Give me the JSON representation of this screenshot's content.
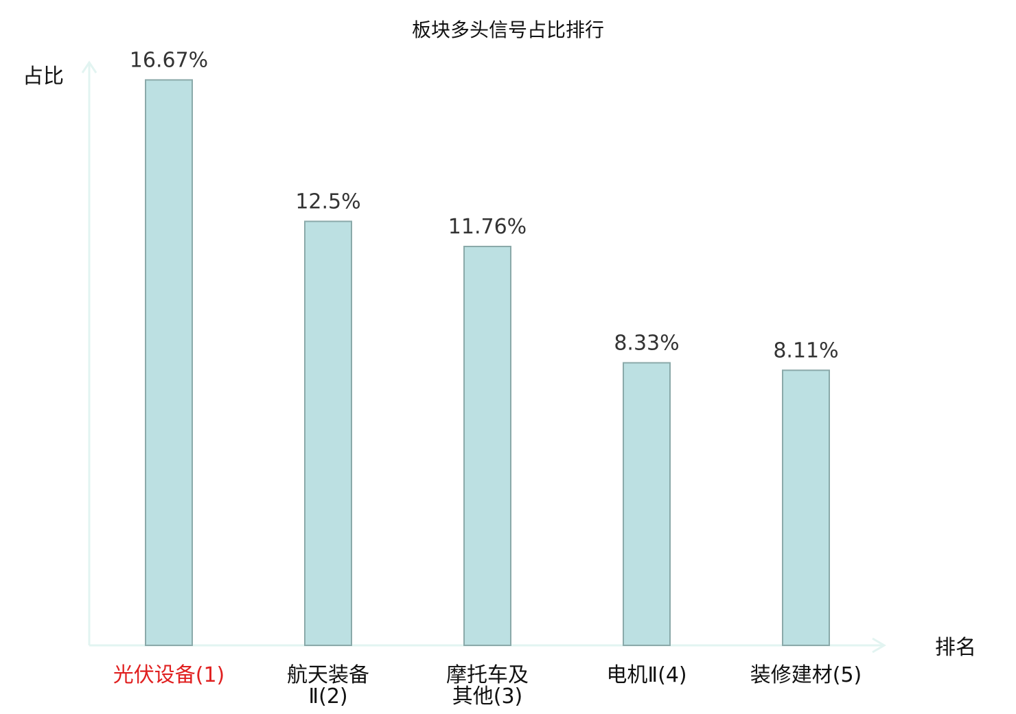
{
  "chart_data": {
    "type": "bar",
    "title": "板块多头信号占比排行",
    "ylabel": "占比",
    "xlabel": "排名",
    "categories": [
      [
        "光伏设备(1)"
      ],
      [
        "航天装备",
        "Ⅱ(2)"
      ],
      [
        "摩托车及",
        "其他(3)"
      ],
      [
        "电机Ⅱ(4)"
      ],
      [
        "装修建材(5)"
      ]
    ],
    "values": [
      16.67,
      12.5,
      11.76,
      8.33,
      8.11
    ],
    "value_labels": [
      "16.67%",
      "12.5%",
      "11.76%",
      "8.33%",
      "8.11%"
    ],
    "highlight_index": 0,
    "ylim": [
      0,
      18.5
    ],
    "grid": false,
    "legend": "none"
  },
  "colors": {
    "bar_fill": "#bce0e2",
    "bar_stroke": "#8aa9a9",
    "axis": "#e2f4f1",
    "label_text": "#111111",
    "value_text": "#333333",
    "highlight_text": "#e02020"
  }
}
